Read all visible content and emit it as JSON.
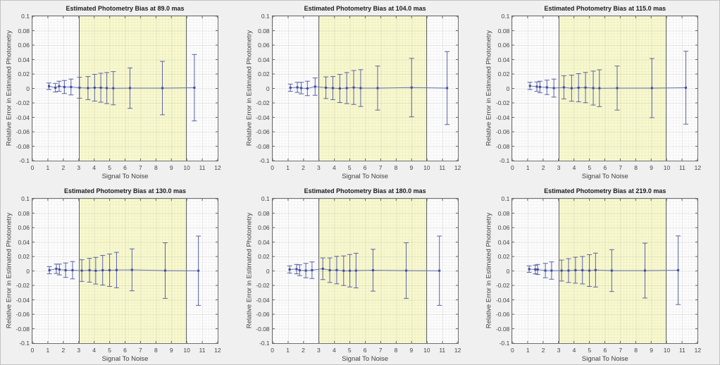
{
  "figure": {
    "background": "#f0f0f0"
  },
  "style": {
    "band_color": "#f9f9cf",
    "band_edge_color": "#686868",
    "errorbar_color": "#5a64a4",
    "line_color": "#6872ae",
    "marker_color": "#3b4cae",
    "tick_color": "#666666"
  },
  "chart_data": [
    {
      "type": "errorbar",
      "title": "Estimated Photometry Bias at 89.0 mas",
      "xlabel": "Signal To Noise",
      "ylabel": "Relative Error in Estimated Photometry",
      "xlim": [
        0,
        12
      ],
      "ylim": [
        -0.1,
        0.1
      ],
      "xtick_labels": [
        "0",
        "1",
        "2",
        "3",
        "4",
        "5",
        "6",
        "7",
        "8",
        "9",
        "10",
        "11",
        "12"
      ],
      "xticks": [
        0,
        1,
        2,
        3,
        4,
        5,
        6,
        7,
        8,
        9,
        10,
        11,
        12
      ],
      "ytick_labels": [
        "0.1",
        "0.08",
        "0.06",
        "0.04",
        "0.02",
        "0",
        "-0.02",
        "-0.04",
        "-0.06",
        "-0.08",
        "-0.1"
      ],
      "yticks": [
        0.1,
        0.08,
        0.06,
        0.04,
        0.02,
        0,
        -0.02,
        -0.04,
        -0.06,
        -0.08,
        -0.1
      ],
      "band": {
        "x0": 3,
        "x1": 10
      },
      "x": [
        1.07,
        1.49,
        1.73,
        2.07,
        2.5,
        3.05,
        3.6,
        4.03,
        4.43,
        4.82,
        5.24,
        6.32,
        8.42,
        10.49
      ],
      "y": [
        0.003,
        0.001,
        0.003,
        0.002,
        0.002,
        0.001,
        0.0005,
        0.001,
        0.001,
        0.0005,
        0.0003,
        0.0005,
        0.0005,
        0.001
      ],
      "yerr": [
        0.0045,
        0.006,
        0.007,
        0.009,
        0.011,
        0.0145,
        0.016,
        0.0185,
        0.02,
        0.0215,
        0.023,
        0.028,
        0.037,
        0.046
      ]
    },
    {
      "type": "errorbar",
      "title": "Estimated Photometry Bias at 104.0 mas",
      "xlabel": "Signal To Noise",
      "ylabel": "Relative Error in Estimated Photometry",
      "xlim": [
        0,
        12
      ],
      "ylim": [
        -0.1,
        0.1
      ],
      "xtick_labels": [
        "0",
        "1",
        "2",
        "3",
        "4",
        "5",
        "6",
        "7",
        "8",
        "9",
        "10",
        "11",
        "12"
      ],
      "xticks": [
        0,
        1,
        2,
        3,
        4,
        5,
        6,
        7,
        8,
        9,
        10,
        11,
        12
      ],
      "ytick_labels": [
        "0.1",
        "0.08",
        "0.06",
        "0.04",
        "0.02",
        "0",
        "-0.02",
        "-0.04",
        "-0.06",
        "-0.08",
        "-0.1"
      ],
      "yticks": [
        0.1,
        0.08,
        0.06,
        0.04,
        0.02,
        0,
        -0.02,
        -0.04,
        -0.06,
        -0.08,
        -0.1
      ],
      "band": {
        "x0": 3,
        "x1": 10
      },
      "x": [
        1.15,
        1.6,
        1.85,
        2.25,
        2.75,
        3.45,
        3.9,
        4.35,
        4.8,
        5.25,
        5.7,
        6.8,
        9.0,
        11.3
      ],
      "y": [
        0.001,
        0.0015,
        0.0005,
        0.0,
        0.0025,
        0.001,
        0.0005,
        0.0,
        0.0005,
        0.0013,
        0.0005,
        0.0005,
        0.0012,
        0.0005
      ],
      "yerr": [
        0.005,
        0.007,
        0.008,
        0.01,
        0.012,
        0.015,
        0.016,
        0.0195,
        0.0215,
        0.0235,
        0.0255,
        0.0305,
        0.0405,
        0.0505
      ]
    },
    {
      "type": "errorbar",
      "title": "Estimated Photometry Bias at 115.0 mas",
      "xlabel": "Signal To Noise",
      "ylabel": "Relative Error in Estimated Photometry",
      "xlim": [
        0,
        12
      ],
      "ylim": [
        -0.1,
        0.1
      ],
      "xtick_labels": [
        "0",
        "1",
        "2",
        "3",
        "4",
        "5",
        "6",
        "7",
        "8",
        "9",
        "10",
        "11",
        "12"
      ],
      "xticks": [
        0,
        1,
        2,
        3,
        4,
        5,
        6,
        7,
        8,
        9,
        10,
        11,
        12
      ],
      "ytick_labels": [
        "0.1",
        "0.08",
        "0.06",
        "0.04",
        "0.02",
        "0",
        "-0.02",
        "-0.04",
        "-0.06",
        "-0.08",
        "-0.1"
      ],
      "yticks": [
        0.1,
        0.08,
        0.06,
        0.04,
        0.02,
        0,
        -0.02,
        -0.04,
        -0.06,
        -0.08,
        -0.1
      ],
      "band": {
        "x0": 3,
        "x1": 10
      },
      "x": [
        1.15,
        1.6,
        1.8,
        2.25,
        2.7,
        3.35,
        3.85,
        4.3,
        4.75,
        5.25,
        5.65,
        6.8,
        9.05,
        11.25
      ],
      "y": [
        0.0035,
        0.0025,
        0.002,
        0.0015,
        0.0005,
        0.0015,
        0.0003,
        0.001,
        0.0012,
        0.0005,
        0.0003,
        0.0005,
        0.0005,
        0.001
      ],
      "yerr": [
        0.005,
        0.0065,
        0.008,
        0.01,
        0.0125,
        0.016,
        0.018,
        0.0195,
        0.021,
        0.0235,
        0.0255,
        0.0305,
        0.041,
        0.0505
      ]
    },
    {
      "type": "errorbar",
      "title": "Estimated Photometry Bias at 130.0 mas",
      "xlabel": "Signal To Noise",
      "ylabel": "Relative Error in Estimated Photometry",
      "xlim": [
        0,
        12
      ],
      "ylim": [
        -0.1,
        0.1
      ],
      "xtick_labels": [
        "0",
        "1",
        "2",
        "3",
        "4",
        "5",
        "6",
        "7",
        "8",
        "9",
        "10",
        "11",
        "12"
      ],
      "xticks": [
        0,
        1,
        2,
        3,
        4,
        5,
        6,
        7,
        8,
        9,
        10,
        11,
        12
      ],
      "ytick_labels": [
        "0.1",
        "0.08",
        "0.06",
        "0.04",
        "0.02",
        "0",
        "-0.02",
        "-0.04",
        "-0.06",
        "-0.08",
        "-0.1"
      ],
      "yticks": [
        0.1,
        0.08,
        0.06,
        0.04,
        0.02,
        0,
        -0.02,
        -0.04,
        -0.06,
        -0.08,
        -0.1
      ],
      "band": {
        "x0": 3,
        "x1": 10
      },
      "x": [
        1.1,
        1.55,
        1.75,
        2.15,
        2.6,
        3.2,
        3.7,
        4.1,
        4.55,
        5.0,
        5.45,
        6.45,
        8.6,
        10.75
      ],
      "y": [
        0.001,
        0.003,
        0.002,
        0.001,
        0.001,
        0.0005,
        0.001,
        0.0003,
        0.001,
        0.001,
        0.0012,
        0.0015,
        0.0005,
        0.0003
      ],
      "yerr": [
        0.005,
        0.0065,
        0.0075,
        0.01,
        0.012,
        0.015,
        0.0165,
        0.0185,
        0.0205,
        0.0225,
        0.0245,
        0.029,
        0.0385,
        0.048
      ]
    },
    {
      "type": "errorbar",
      "title": "Estimated Photometry Bias at 180.0 mas",
      "xlabel": "Signal To Noise",
      "ylabel": "Relative Error in Estimated Photometry",
      "xlim": [
        0,
        12
      ],
      "ylim": [
        -0.1,
        0.1
      ],
      "xtick_labels": [
        "0",
        "1",
        "2",
        "3",
        "4",
        "5",
        "6",
        "7",
        "8",
        "9",
        "10",
        "11",
        "12"
      ],
      "xticks": [
        0,
        1,
        2,
        3,
        4,
        5,
        6,
        7,
        8,
        9,
        10,
        11,
        12
      ],
      "ytick_labels": [
        "0.1",
        "0.08",
        "0.06",
        "0.04",
        "0.02",
        "0",
        "-0.02",
        "-0.04",
        "-0.06",
        "-0.08",
        "-0.1"
      ],
      "yticks": [
        0.1,
        0.08,
        0.06,
        0.04,
        0.02,
        0,
        -0.02,
        -0.04,
        -0.06,
        -0.08,
        -0.1
      ],
      "band": {
        "x0": 3,
        "x1": 10
      },
      "x": [
        1.1,
        1.55,
        1.75,
        2.15,
        2.55,
        3.25,
        3.7,
        4.15,
        4.6,
        5.0,
        5.4,
        6.5,
        8.65,
        10.8
      ],
      "y": [
        0.002,
        0.0025,
        0.001,
        0.0005,
        0.001,
        0.003,
        0.001,
        0.0012,
        0.0003,
        0.0003,
        0.0005,
        0.001,
        0.0005,
        0.0003
      ],
      "yerr": [
        0.005,
        0.0065,
        0.0075,
        0.01,
        0.0115,
        0.015,
        0.017,
        0.019,
        0.0205,
        0.0225,
        0.024,
        0.029,
        0.0385,
        0.048
      ]
    },
    {
      "type": "errorbar",
      "title": "Estimated Photometry Bias at 219.0 mas",
      "xlabel": "Signal To Noise",
      "ylabel": "Relative Error in Estimated Photometry",
      "xlim": [
        0,
        12
      ],
      "ylim": [
        -0.1,
        0.1
      ],
      "xtick_labels": [
        "0",
        "1",
        "2",
        "3",
        "4",
        "5",
        "6",
        "7",
        "8",
        "9",
        "10",
        "11",
        "12"
      ],
      "xticks": [
        0,
        1,
        2,
        3,
        4,
        5,
        6,
        7,
        8,
        9,
        10,
        11,
        12
      ],
      "ytick_labels": [
        "0.1",
        "0.08",
        "0.06",
        "0.04",
        "0.02",
        "0",
        "-0.02",
        "-0.04",
        "-0.06",
        "-0.08",
        "-0.1"
      ],
      "yticks": [
        0.1,
        0.08,
        0.06,
        0.04,
        0.02,
        0,
        -0.02,
        -0.04,
        -0.06,
        -0.08,
        -0.1
      ],
      "band": {
        "x0": 3,
        "x1": 10
      },
      "x": [
        1.1,
        1.5,
        1.65,
        2.15,
        2.55,
        3.2,
        3.65,
        4.1,
        4.55,
        5.0,
        5.4,
        6.45,
        8.6,
        10.75
      ],
      "y": [
        0.0025,
        0.002,
        0.002,
        0.0005,
        0.0005,
        0.0005,
        0.0005,
        0.001,
        0.001,
        0.0005,
        0.0012,
        0.0005,
        0.0005,
        0.001
      ],
      "yerr": [
        0.0045,
        0.006,
        0.007,
        0.01,
        0.012,
        0.0145,
        0.0165,
        0.018,
        0.019,
        0.022,
        0.0235,
        0.029,
        0.038,
        0.0475
      ]
    }
  ]
}
